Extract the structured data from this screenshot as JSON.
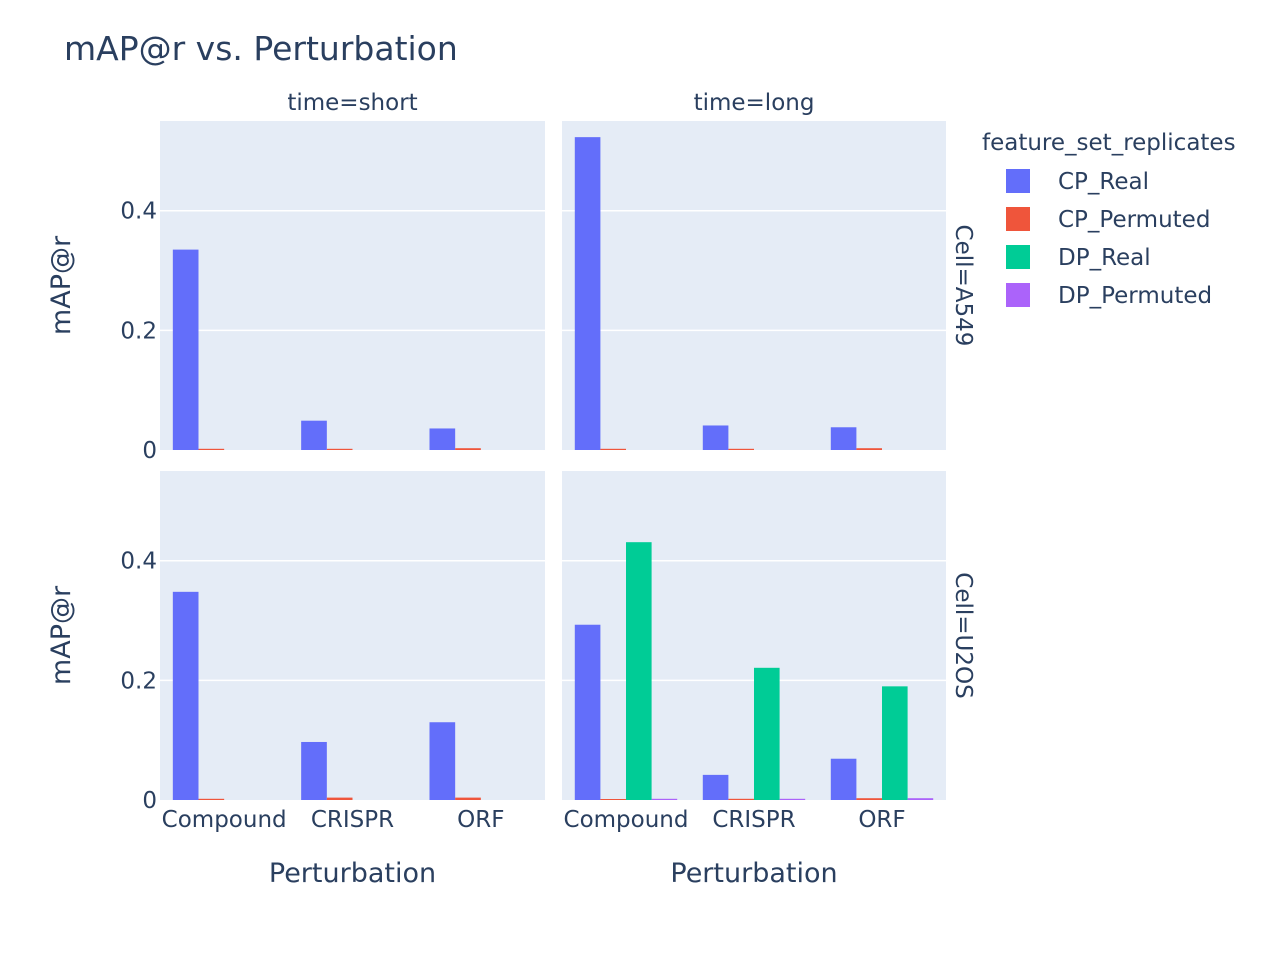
{
  "chart_data": {
    "type": "bar",
    "title": "mAP@r vs. Perturbation",
    "xlabel": "Perturbation",
    "ylabel": "mAP@r",
    "categories": [
      "Compound",
      "CRISPR",
      "ORF"
    ],
    "ylim": [
      0,
      0.55
    ],
    "yticks": [
      0,
      0.2,
      0.4
    ],
    "ytick_labels": [
      "0",
      "0.2",
      "0.4"
    ],
    "grid": true,
    "legend": {
      "title": "feature_set_replicates",
      "placement": "right",
      "entries": [
        {
          "name": "CP_Real",
          "color": "#636efa"
        },
        {
          "name": "CP_Permuted",
          "color": "#ef553b"
        },
        {
          "name": "DP_Real",
          "color": "#00cc96"
        },
        {
          "name": "DP_Permuted",
          "color": "#ab63fa"
        }
      ]
    },
    "col_facets": [
      "time=short",
      "time=long"
    ],
    "row_facets": [
      "Cell=A549",
      "Cell=U2OS"
    ],
    "panels": [
      {
        "row": "Cell=A549",
        "col": "time=short",
        "series": [
          {
            "name": "CP_Real",
            "values": [
              0.335,
              0.049,
              0.036
            ]
          },
          {
            "name": "CP_Permuted",
            "values": [
              0.002,
              0.002,
              0.003
            ]
          },
          {
            "name": "DP_Real",
            "values": [
              null,
              null,
              null
            ]
          },
          {
            "name": "DP_Permuted",
            "values": [
              null,
              null,
              null
            ]
          }
        ]
      },
      {
        "row": "Cell=A549",
        "col": "time=long",
        "series": [
          {
            "name": "CP_Real",
            "values": [
              0.523,
              0.041,
              0.038
            ]
          },
          {
            "name": "CP_Permuted",
            "values": [
              0.002,
              0.002,
              0.003
            ]
          },
          {
            "name": "DP_Real",
            "values": [
              null,
              null,
              null
            ]
          },
          {
            "name": "DP_Permuted",
            "values": [
              null,
              null,
              null
            ]
          }
        ]
      },
      {
        "row": "Cell=U2OS",
        "col": "time=short",
        "series": [
          {
            "name": "CP_Real",
            "values": [
              0.348,
              0.097,
              0.13
            ]
          },
          {
            "name": "CP_Permuted",
            "values": [
              0.002,
              0.004,
              0.004
            ]
          },
          {
            "name": "DP_Real",
            "values": [
              null,
              null,
              null
            ]
          },
          {
            "name": "DP_Permuted",
            "values": [
              null,
              null,
              null
            ]
          }
        ]
      },
      {
        "row": "Cell=U2OS",
        "col": "time=long",
        "series": [
          {
            "name": "CP_Real",
            "values": [
              0.293,
              0.042,
              0.069
            ]
          },
          {
            "name": "CP_Permuted",
            "values": [
              0.001,
              0.002,
              0.003
            ]
          },
          {
            "name": "DP_Real",
            "values": [
              0.431,
              0.221,
              0.19
            ]
          },
          {
            "name": "DP_Permuted",
            "values": [
              0.002,
              0.002,
              0.003
            ]
          }
        ]
      }
    ]
  },
  "colors": {
    "plot_bg": "#e5ecf6",
    "grid": "#ffffff",
    "text": "#2a3f5f"
  }
}
